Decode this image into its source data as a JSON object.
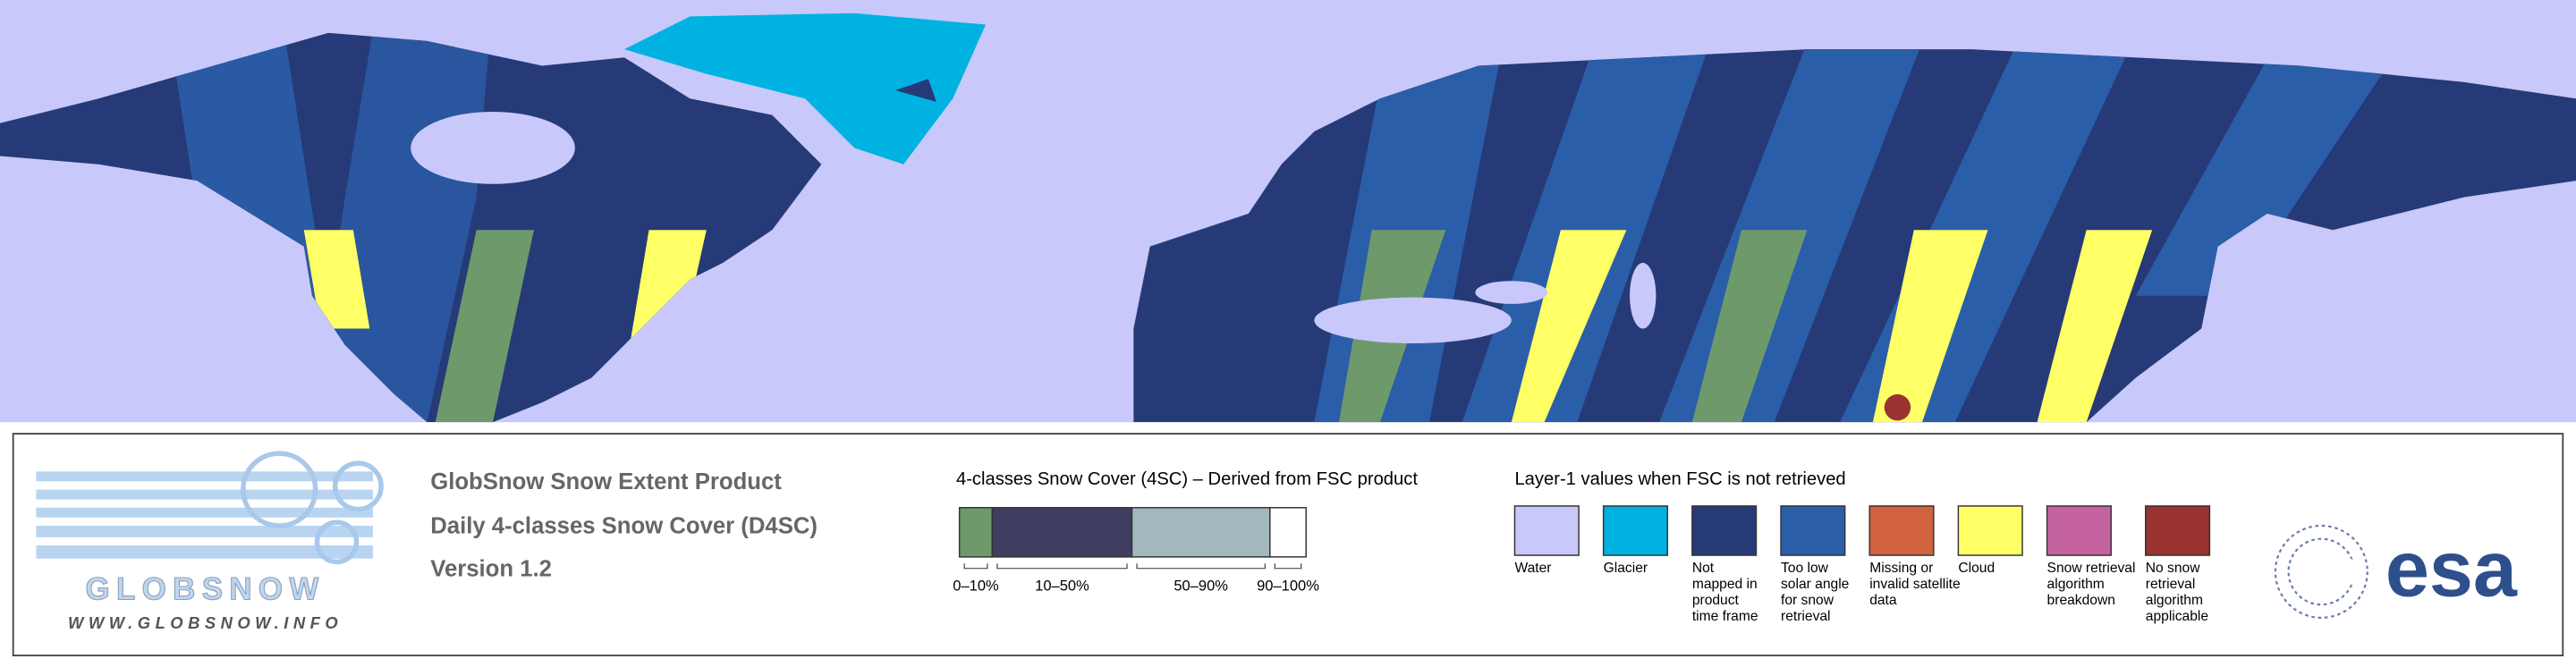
{
  "header": {
    "title": "GlobSnow Snow Extent Product",
    "subtitle": "Daily 4-classes Snow Cover (D4SC)",
    "version": "Version 1.2"
  },
  "logo": {
    "wordmark": "GLOBSNOW",
    "url": "WWW.GLOBSNOW.INFO"
  },
  "snow_cover_legend": {
    "title": "4-classes Snow Cover (4SC) – Derived from FSC product",
    "classes": [
      {
        "label": "0–10%",
        "color": "#6e9a6b"
      },
      {
        "label": "10–50%",
        "color": "#3e3f60"
      },
      {
        "label": "50–90%",
        "color": "#a2b8be"
      },
      {
        "label": "90–100%",
        "color": "#ffffff"
      }
    ]
  },
  "layer1_legend": {
    "title": "Layer-1 values when FSC is not retrieved",
    "items": [
      {
        "lines": [
          "Water"
        ],
        "color": "#c8c8fa"
      },
      {
        "lines": [
          "Glacier"
        ],
        "color": "#00b2e2"
      },
      {
        "lines": [
          "Not",
          "mapped in",
          "product",
          "time frame"
        ],
        "color": "#263a78"
      },
      {
        "lines": [
          "Too low",
          "solar angle",
          "for snow",
          "retrieval"
        ],
        "color": "#2b5ea8"
      },
      {
        "lines": [
          "Missing or",
          "invalid satellite",
          "data"
        ],
        "color": "#d0623f"
      },
      {
        "lines": [
          "Cloud"
        ],
        "color": "#ffff66"
      },
      {
        "lines": [
          "Snow retrieval",
          "algorithm",
          "breakdown"
        ],
        "color": "#c463a0"
      },
      {
        "lines": [
          "No snow",
          "retrieval",
          "algorithm",
          "applicable"
        ],
        "color": "#9a3232"
      }
    ]
  },
  "esa_logo": "esa"
}
